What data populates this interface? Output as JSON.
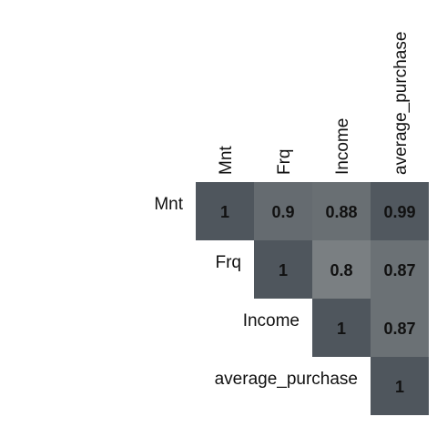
{
  "chart_data": {
    "type": "heatmap",
    "variables": [
      "Mnt",
      "Frq",
      "Income",
      "average_purchase"
    ],
    "matrix_layout": "upper-triangle",
    "title": "",
    "cells": [
      {
        "row": "Mnt",
        "col": "Mnt",
        "value": 1,
        "label": "1"
      },
      {
        "row": "Mnt",
        "col": "Frq",
        "value": 0.9,
        "label": "0.9"
      },
      {
        "row": "Mnt",
        "col": "Income",
        "value": 0.88,
        "label": "0.88"
      },
      {
        "row": "Mnt",
        "col": "average_purchase",
        "value": 0.99,
        "label": "0.99"
      },
      {
        "row": "Frq",
        "col": "Frq",
        "value": 1,
        "label": "1"
      },
      {
        "row": "Frq",
        "col": "Income",
        "value": 0.8,
        "label": "0.8"
      },
      {
        "row": "Frq",
        "col": "average_purchase",
        "value": 0.87,
        "label": "0.87"
      },
      {
        "row": "Income",
        "col": "Income",
        "value": 1,
        "label": "1"
      },
      {
        "row": "Income",
        "col": "average_purchase",
        "value": 0.87,
        "label": "0.87"
      },
      {
        "row": "average_purchase",
        "col": "average_purchase",
        "value": 1,
        "label": "1"
      }
    ],
    "color_scale": {
      "low": "#7a7f82",
      "high": "#4f565d",
      "range": [
        0.8,
        1
      ]
    }
  }
}
